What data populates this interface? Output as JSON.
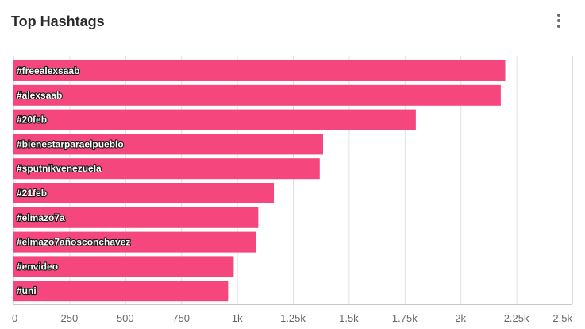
{
  "header": {
    "title": "Top Hashtags",
    "menu_icon": "kebab-menu-icon"
  },
  "colors": {
    "bar": "#F5477D",
    "grid": "#e0e0e0",
    "axis": "#c8c8c8"
  },
  "chart_data": {
    "type": "bar",
    "orientation": "horizontal",
    "title": "Top Hashtags",
    "categories": [
      "#freealexsaab",
      "#alexsaab",
      "#20feb",
      "#bienestarparaelpueblo",
      "#sputnikvenezuela",
      "#21feb",
      "#elmazo7a",
      "#elmazo7añosconchavez",
      "#envideo",
      "#uni"
    ],
    "values": [
      2200,
      2180,
      1800,
      1385,
      1370,
      1165,
      1095,
      1085,
      985,
      960
    ],
    "xlim": [
      0,
      2500
    ],
    "xticks": [
      0,
      250,
      500,
      750,
      1000,
      1250,
      1500,
      1750,
      2000,
      2250,
      2500
    ],
    "xtick_labels": [
      "0",
      "250",
      "500",
      "750",
      "1k",
      "1.25k",
      "1.5k",
      "1.75k",
      "2k",
      "2.25k",
      "2.5k"
    ],
    "grid": true,
    "legend": "none"
  }
}
